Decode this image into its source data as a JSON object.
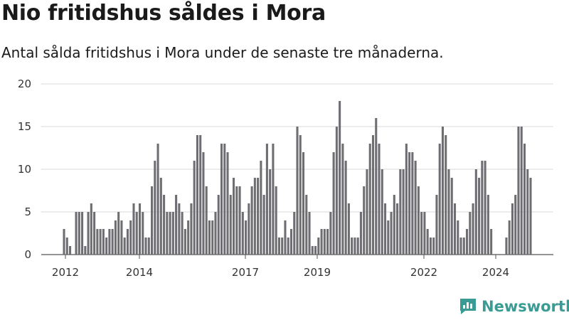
{
  "header": {
    "title": "Nio fritidshus såldes i Mora",
    "subtitle": "Antal sålda fritidshus i Mora under de senaste tre månaderna."
  },
  "brand": {
    "name": "Newsworthy"
  },
  "colors": {
    "bar": "#6e6d72",
    "highlight": "#2a9d8f",
    "grid": "#d9d9d9",
    "brand": "#3a9b94"
  },
  "chart_data": {
    "type": "bar",
    "title": "Nio fritidshus såldes i Mora",
    "subtitle": "Antal sålda fritidshus i Mora under de senaste tre månaderna.",
    "xlabel": "",
    "ylabel": "",
    "ylim": [
      0,
      20
    ],
    "y_ticks": [
      0,
      5,
      10,
      15,
      20
    ],
    "x_ticks": [
      "2012",
      "2014",
      "2017",
      "2019",
      "2022",
      "2024"
    ],
    "grid": true,
    "values": [
      3,
      2,
      1,
      0,
      5,
      5,
      5,
      1,
      5,
      6,
      5,
      3,
      3,
      3,
      2,
      3,
      3,
      4,
      5,
      4,
      2,
      3,
      4,
      6,
      5,
      6,
      5,
      2,
      2,
      8,
      11,
      13,
      9,
      7,
      5,
      5,
      5,
      7,
      6,
      5,
      3,
      4,
      6,
      11,
      14,
      14,
      12,
      8,
      4,
      4,
      5,
      7,
      13,
      13,
      12,
      7,
      9,
      8,
      8,
      5,
      4,
      6,
      8,
      9,
      9,
      11,
      7,
      13,
      10,
      13,
      8,
      2,
      2,
      4,
      2,
      3,
      5,
      15,
      14,
      12,
      7,
      5,
      1,
      1,
      2,
      3,
      3,
      3,
      5,
      12,
      15,
      18,
      13,
      11,
      6,
      2,
      2,
      2,
      5,
      8,
      10,
      13,
      14,
      16,
      13,
      10,
      6,
      4,
      5,
      7,
      6,
      10,
      10,
      13,
      12,
      12,
      11,
      8,
      5,
      5,
      3,
      2,
      2,
      7,
      13,
      15,
      14,
      10,
      9,
      6,
      4,
      2,
      2,
      3,
      5,
      6,
      10,
      9,
      11,
      11,
      7,
      3,
      0,
      0,
      0,
      0,
      2,
      4,
      6,
      7,
      15,
      15,
      13,
      10,
      9
    ],
    "highlight_index": 155,
    "highlight_label": "9"
  }
}
